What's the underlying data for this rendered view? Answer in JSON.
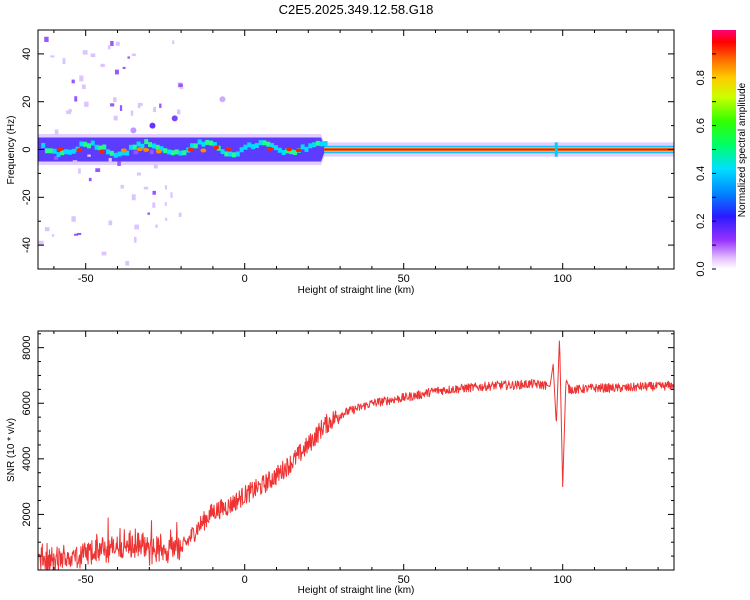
{
  "chart_data": [
    {
      "type": "heatmap",
      "title": "C2E5.2025.349.12.58.G18",
      "xlabel": "Height of straight line (km)",
      "ylabel": "Frequency (Hz)",
      "xlim": [
        -65,
        135
      ],
      "ylim": [
        -50,
        50
      ],
      "xticks": [
        -50,
        0,
        50,
        100
      ],
      "yticks": [
        -40,
        -20,
        0,
        20,
        40
      ],
      "colorbar": {
        "label": "Normalized spectral amplitude",
        "range": [
          0,
          1
        ],
        "ticks": [
          "0.0",
          "0.2",
          "0.4",
          "0.6",
          "0.8"
        ],
        "tick_values": [
          0.0,
          0.2,
          0.4,
          0.6,
          0.8
        ]
      },
      "ridge": {
        "description_free": true,
        "center_frequency_hz": 0,
        "band_halfwidth_hz_left": 5,
        "band_halfwidth_hz_right": 1.5,
        "transition_height_km": 25
      }
    },
    {
      "type": "line",
      "xlabel": "Height of straight line (km)",
      "ylabel": "SNR (10 * v/v)",
      "xlim": [
        -65,
        135
      ],
      "ylim": [
        0,
        8600
      ],
      "xticks": [
        -50,
        0,
        50,
        100
      ],
      "yticks": [
        2000,
        4000,
        6000,
        8000
      ],
      "series": [
        {
          "name": "SNR",
          "color": "#ee3333",
          "x": [
            -65,
            -60,
            -55,
            -50,
            -45,
            -40,
            -35,
            -30,
            -25,
            -20,
            -15,
            -10,
            -5,
            0,
            5,
            10,
            15,
            20,
            25,
            30,
            35,
            40,
            45,
            50,
            55,
            60,
            65,
            70,
            75,
            80,
            85,
            90,
            95,
            96,
            97,
            98,
            99,
            100,
            101,
            102,
            105,
            110,
            115,
            120,
            125,
            130,
            135
          ],
          "values": [
            400,
            300,
            450,
            600,
            700,
            800,
            900,
            700,
            800,
            700,
            1500,
            2100,
            2300,
            2700,
            3000,
            3400,
            3900,
            4500,
            5200,
            5600,
            5800,
            6000,
            6100,
            6200,
            6300,
            6450,
            6500,
            6550,
            6600,
            6650,
            6650,
            6700,
            6650,
            6600,
            7400,
            5200,
            8400,
            3000,
            6800,
            6500,
            6500,
            6550,
            6550,
            6550,
            6600,
            6600,
            6650
          ]
        }
      ]
    }
  ],
  "colors": {
    "line": "#ee3333",
    "axis": "#000000",
    "background": "#ffffff"
  }
}
